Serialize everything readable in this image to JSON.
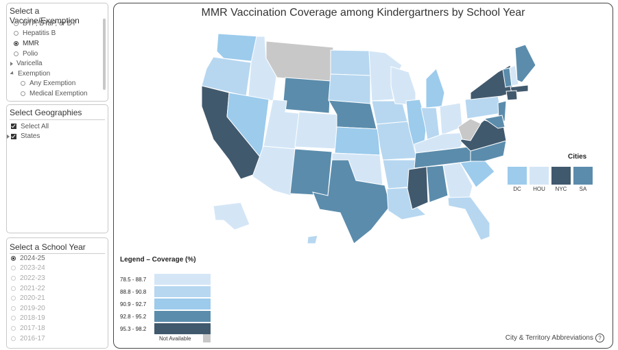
{
  "vaccine_panel": {
    "title": "Select a Vaccine/Exemption",
    "items": [
      {
        "label": "DTP, DTaP, or DT",
        "kind": "radio",
        "selected": false
      },
      {
        "label": "Hepatitis B",
        "kind": "radio",
        "selected": false
      },
      {
        "label": "MMR",
        "kind": "radio",
        "selected": true
      },
      {
        "label": "Polio",
        "kind": "radio",
        "selected": false
      },
      {
        "label": "Varicella",
        "kind": "expander",
        "selected": false
      },
      {
        "label": "Exemption",
        "kind": "expanded",
        "selected": false
      },
      {
        "label": "Any Exemption",
        "kind": "radio-indent",
        "selected": false
      },
      {
        "label": "Medical Exemption",
        "kind": "radio-indent",
        "selected": false
      }
    ]
  },
  "geo_panel": {
    "title": "Select Geographies",
    "items": [
      {
        "label": "Select All"
      },
      {
        "label": "States"
      }
    ]
  },
  "year_panel": {
    "title": "Select a School Year",
    "years": [
      "2024-25",
      "2023-24",
      "2022-23",
      "2021-22",
      "2020-21",
      "2019-20",
      "2018-19",
      "2017-18",
      "2016-17"
    ],
    "selected": "2024-25"
  },
  "map": {
    "title": "MMR Vaccination Coverage among Kindergartners by School Year",
    "legend_title": "Legend – Coverage (%)",
    "legend": [
      {
        "range": "78.5 - 88.7",
        "color": "#d4e6f6"
      },
      {
        "range": "88.8 - 90.8",
        "color": "#b7d7f0"
      },
      {
        "range": "90.9 - 92.7",
        "color": "#9ccbec"
      },
      {
        "range": "92.8 - 95.2",
        "color": "#5b8cac"
      },
      {
        "range": "95.3 - 98.2",
        "color": "#41596d"
      }
    ],
    "not_available": {
      "label": "Not Available",
      "color": "#c8c8c8"
    },
    "cities_title": "Cities",
    "cities": [
      {
        "code": "DC",
        "color": "#9ccbec"
      },
      {
        "code": "HOU",
        "color": "#d4e6f6"
      },
      {
        "code": "NYC",
        "color": "#41596d"
      },
      {
        "code": "SA",
        "color": "#5b8cac"
      }
    ],
    "abbreviations_link": "City & Territory Abbreviations",
    "help_icon_text": "?"
  }
}
